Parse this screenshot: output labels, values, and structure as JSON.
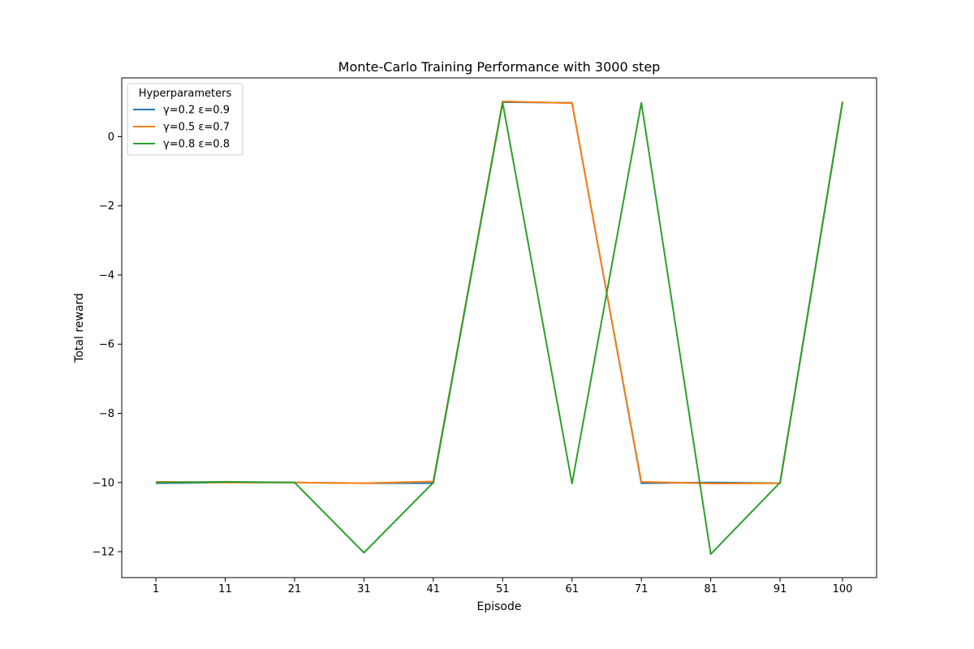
{
  "chart_data": {
    "type": "line",
    "title": "Monte-Carlo Training Performance with 3000 step",
    "xlabel": "Episode",
    "ylabel": "Total reward",
    "x": [
      1,
      11,
      21,
      31,
      41,
      51,
      61,
      71,
      81,
      91,
      100
    ],
    "x_tick_labels": [
      "1",
      "11",
      "21",
      "31",
      "41",
      "51",
      "61",
      "71",
      "81",
      "91",
      "100"
    ],
    "y_ticks": [
      0,
      -2,
      -4,
      -6,
      -8,
      -10,
      -12
    ],
    "y_tick_labels": [
      "0",
      "−2",
      "−4",
      "−6",
      "−8",
      "−10",
      "−12"
    ],
    "ylim": [
      -12.75,
      1.7
    ],
    "grid": false,
    "legend": {
      "title": "Hyperparameters",
      "position": "top-left"
    },
    "series": [
      {
        "name": "γ=0.2 ε=0.9",
        "color": "#1f77b4",
        "values": [
          -10.02,
          -10.0,
          -10.0,
          -10.02,
          -10.02,
          1.0,
          0.98,
          -10.02,
          -10.0,
          -10.02,
          1.0
        ]
      },
      {
        "name": "γ=0.5 ε=0.7",
        "color": "#ff7f0e",
        "values": [
          -9.98,
          -10.0,
          -10.0,
          -10.02,
          -9.97,
          1.02,
          0.97,
          -9.98,
          -10.03,
          -10.02,
          1.02
        ]
      },
      {
        "name": "γ=0.8 ε=0.8",
        "color": "#2ca02c",
        "values": [
          -10.0,
          -9.98,
          -10.0,
          -12.03,
          -10.0,
          0.98,
          -10.03,
          0.98,
          -12.07,
          -10.0,
          1.0
        ]
      }
    ]
  }
}
